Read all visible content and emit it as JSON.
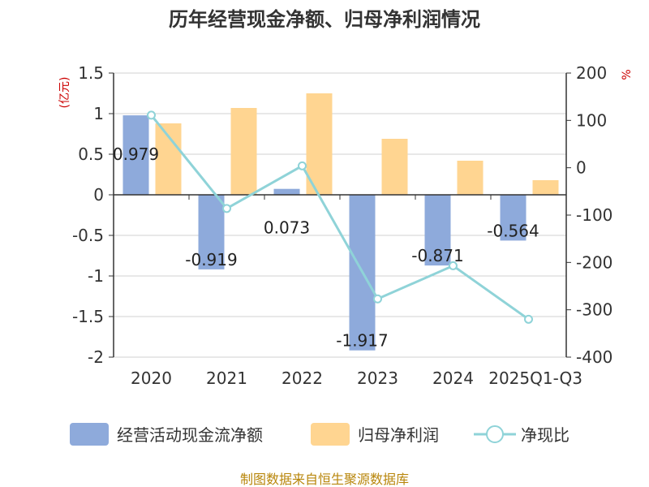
{
  "chart_data": {
    "type": "bar",
    "title": "历年经营现金净额、归母净利润情况",
    "categories": [
      "2020",
      "2021",
      "2022",
      "2023",
      "2024",
      "2025Q1-Q3"
    ],
    "series": [
      {
        "name": "经营活动现金流净额",
        "type": "bar",
        "axis": "left",
        "color": "#8eaadb",
        "values": [
          0.979,
          -0.919,
          0.073,
          -1.917,
          -0.871,
          -0.564
        ],
        "labels": [
          "0.979",
          "-0.919",
          "0.073",
          "-1.917",
          "-0.871",
          "-0.564"
        ]
      },
      {
        "name": "归母净利润",
        "type": "bar",
        "axis": "left",
        "color": "#ffd591",
        "values": [
          0.88,
          1.07,
          1.25,
          0.69,
          0.42,
          0.18
        ]
      },
      {
        "name": "净现比",
        "type": "line",
        "axis": "right",
        "color": "#8fd3d8",
        "values": [
          111,
          -86,
          4,
          -277,
          -207,
          -320
        ]
      }
    ],
    "left_axis": {
      "unit": "(亿元)",
      "ylim": [
        -2,
        1.5
      ],
      "ticks": [
        "1.5",
        "1",
        "0.5",
        "0",
        "-0.5",
        "-1",
        "-1.5",
        "-2"
      ]
    },
    "right_axis": {
      "unit": "%",
      "ylim": [
        -400,
        200
      ],
      "ticks": [
        "200",
        "100",
        "0",
        "-100",
        "-200",
        "-300",
        "-400"
      ]
    },
    "legend_position": "bottom",
    "grid": true,
    "source": "制图数据来自恒生聚源数据库"
  }
}
